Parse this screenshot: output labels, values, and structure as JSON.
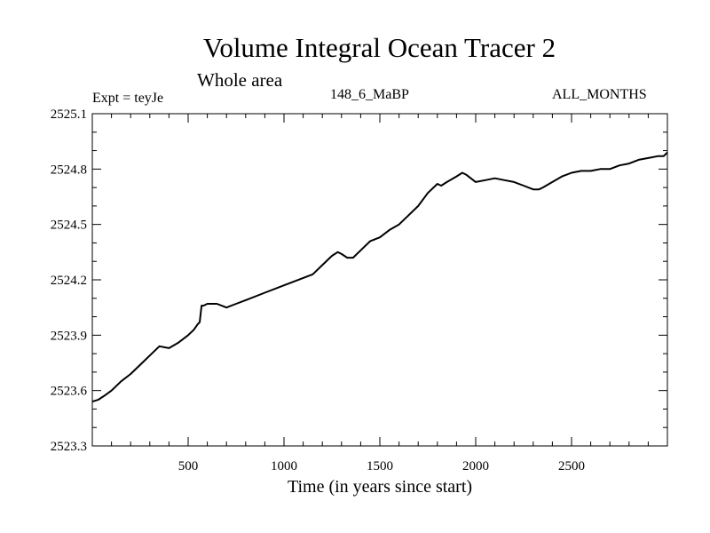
{
  "chart_data": {
    "type": "line",
    "title": "Volume Integral Ocean Tracer 2",
    "subtitle": "Whole area",
    "annotations": {
      "left": "Expt = teyJe",
      "center": "148_6_MaBP",
      "right": "ALL_MONTHS"
    },
    "xlabel": "Time (in years since start)",
    "ylabel": "",
    "xlim": [
      0,
      3000
    ],
    "ylim": [
      2523.3,
      2525.1
    ],
    "xticks": [
      500,
      1000,
      1500,
      2000,
      2500
    ],
    "yticks": [
      "2523.3",
      "2523.6",
      "2523.9",
      "2524.2",
      "2524.5",
      "2524.8",
      "2525.1"
    ],
    "grid": false,
    "series": [
      {
        "x": [
          0,
          30,
          60,
          100,
          150,
          200,
          250,
          300,
          350,
          400,
          450,
          500,
          530,
          550,
          560,
          570,
          580,
          600,
          650,
          700,
          750,
          800,
          900,
          1000,
          1050,
          1100,
          1150,
          1200,
          1250,
          1280,
          1300,
          1330,
          1360,
          1400,
          1450,
          1500,
          1550,
          1600,
          1650,
          1700,
          1750,
          1800,
          1820,
          1850,
          1900,
          1930,
          1950,
          2000,
          2050,
          2100,
          2150,
          2200,
          2250,
          2300,
          2330,
          2350,
          2400,
          2450,
          2500,
          2550,
          2600,
          2650,
          2700,
          2750,
          2800,
          2850,
          2900,
          2950,
          2980,
          3000
        ],
        "values": [
          2523.54,
          2523.55,
          2523.57,
          2523.6,
          2523.65,
          2523.69,
          2523.74,
          2523.79,
          2523.84,
          2523.83,
          2523.86,
          2523.9,
          2523.93,
          2523.96,
          2523.97,
          2524.06,
          2524.06,
          2524.07,
          2524.07,
          2524.05,
          2524.07,
          2524.09,
          2524.13,
          2524.17,
          2524.19,
          2524.21,
          2524.23,
          2524.28,
          2524.33,
          2524.35,
          2524.34,
          2524.32,
          2524.32,
          2524.36,
          2524.41,
          2524.43,
          2524.47,
          2524.5,
          2524.55,
          2524.6,
          2524.67,
          2524.72,
          2524.71,
          2524.73,
          2524.76,
          2524.78,
          2524.77,
          2524.73,
          2524.74,
          2524.75,
          2524.74,
          2524.73,
          2524.71,
          2524.69,
          2524.69,
          2524.7,
          2524.73,
          2524.76,
          2524.78,
          2524.79,
          2524.79,
          2524.8,
          2524.8,
          2524.82,
          2524.83,
          2524.85,
          2524.86,
          2524.87,
          2524.87,
          2524.89
        ]
      }
    ]
  }
}
